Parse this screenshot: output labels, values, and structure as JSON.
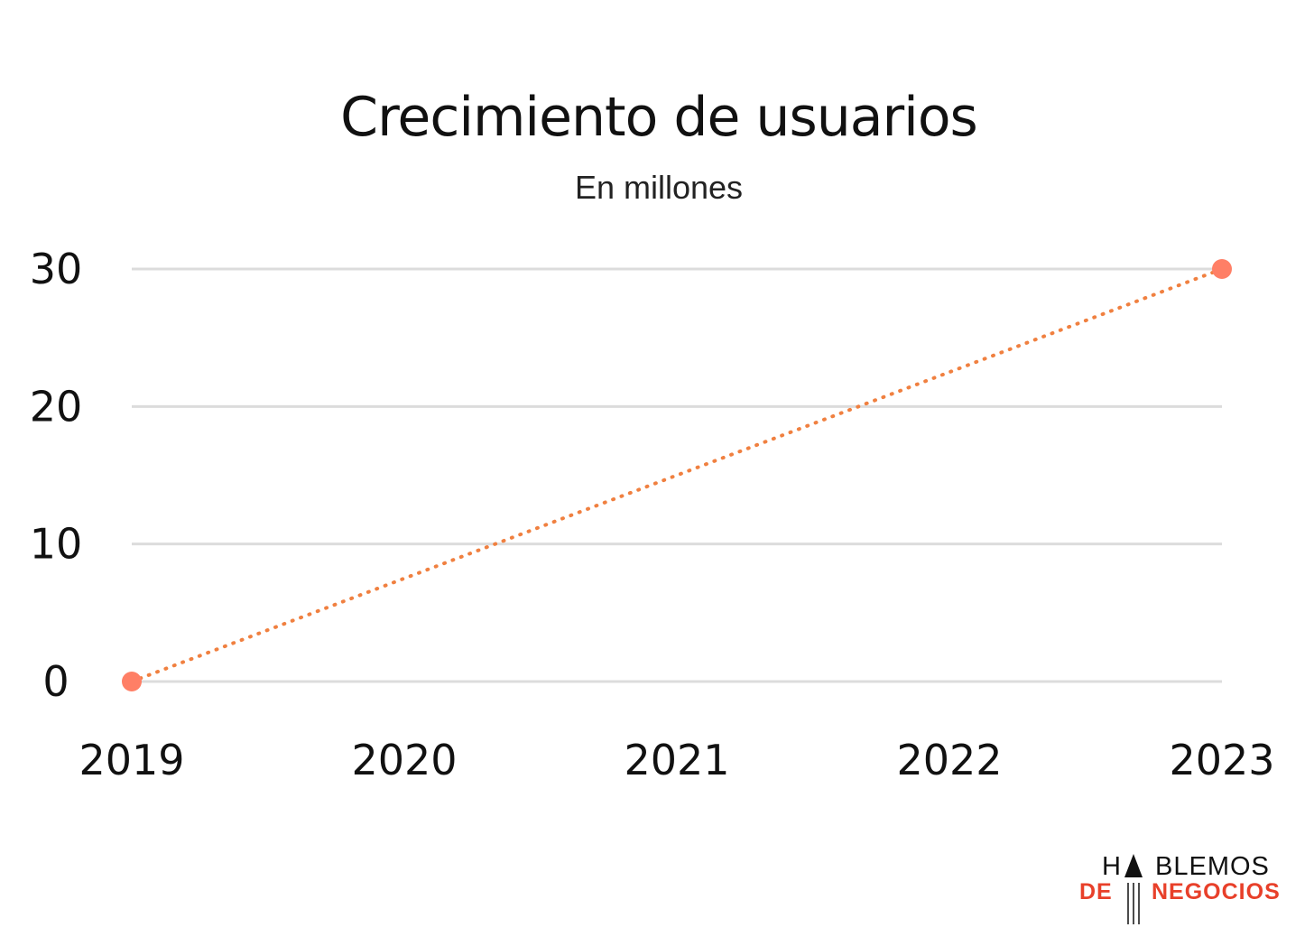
{
  "chart_data": {
    "type": "line",
    "title": "Crecimiento de usuarios",
    "subtitle": "En millones",
    "xlabel": "",
    "ylabel": "",
    "x": [
      "2019",
      "2020",
      "2021",
      "2022",
      "2023"
    ],
    "yticks": [
      "0",
      "10",
      "20",
      "30"
    ],
    "ylim": [
      0,
      30
    ],
    "grid": true,
    "series": [
      {
        "points": [
          {
            "x": "2019",
            "y": 0
          },
          {
            "x": "2023",
            "y": 30
          }
        ],
        "color": "#f08040",
        "marker_color": "#ff7f66",
        "line_style": "dotted"
      }
    ]
  },
  "logo": {
    "line1_left": "H",
    "line1_right": "BLEMOS",
    "line2_left": "DE",
    "line2_right": "NEGOCIOS",
    "accent_color": "#e8402a"
  }
}
